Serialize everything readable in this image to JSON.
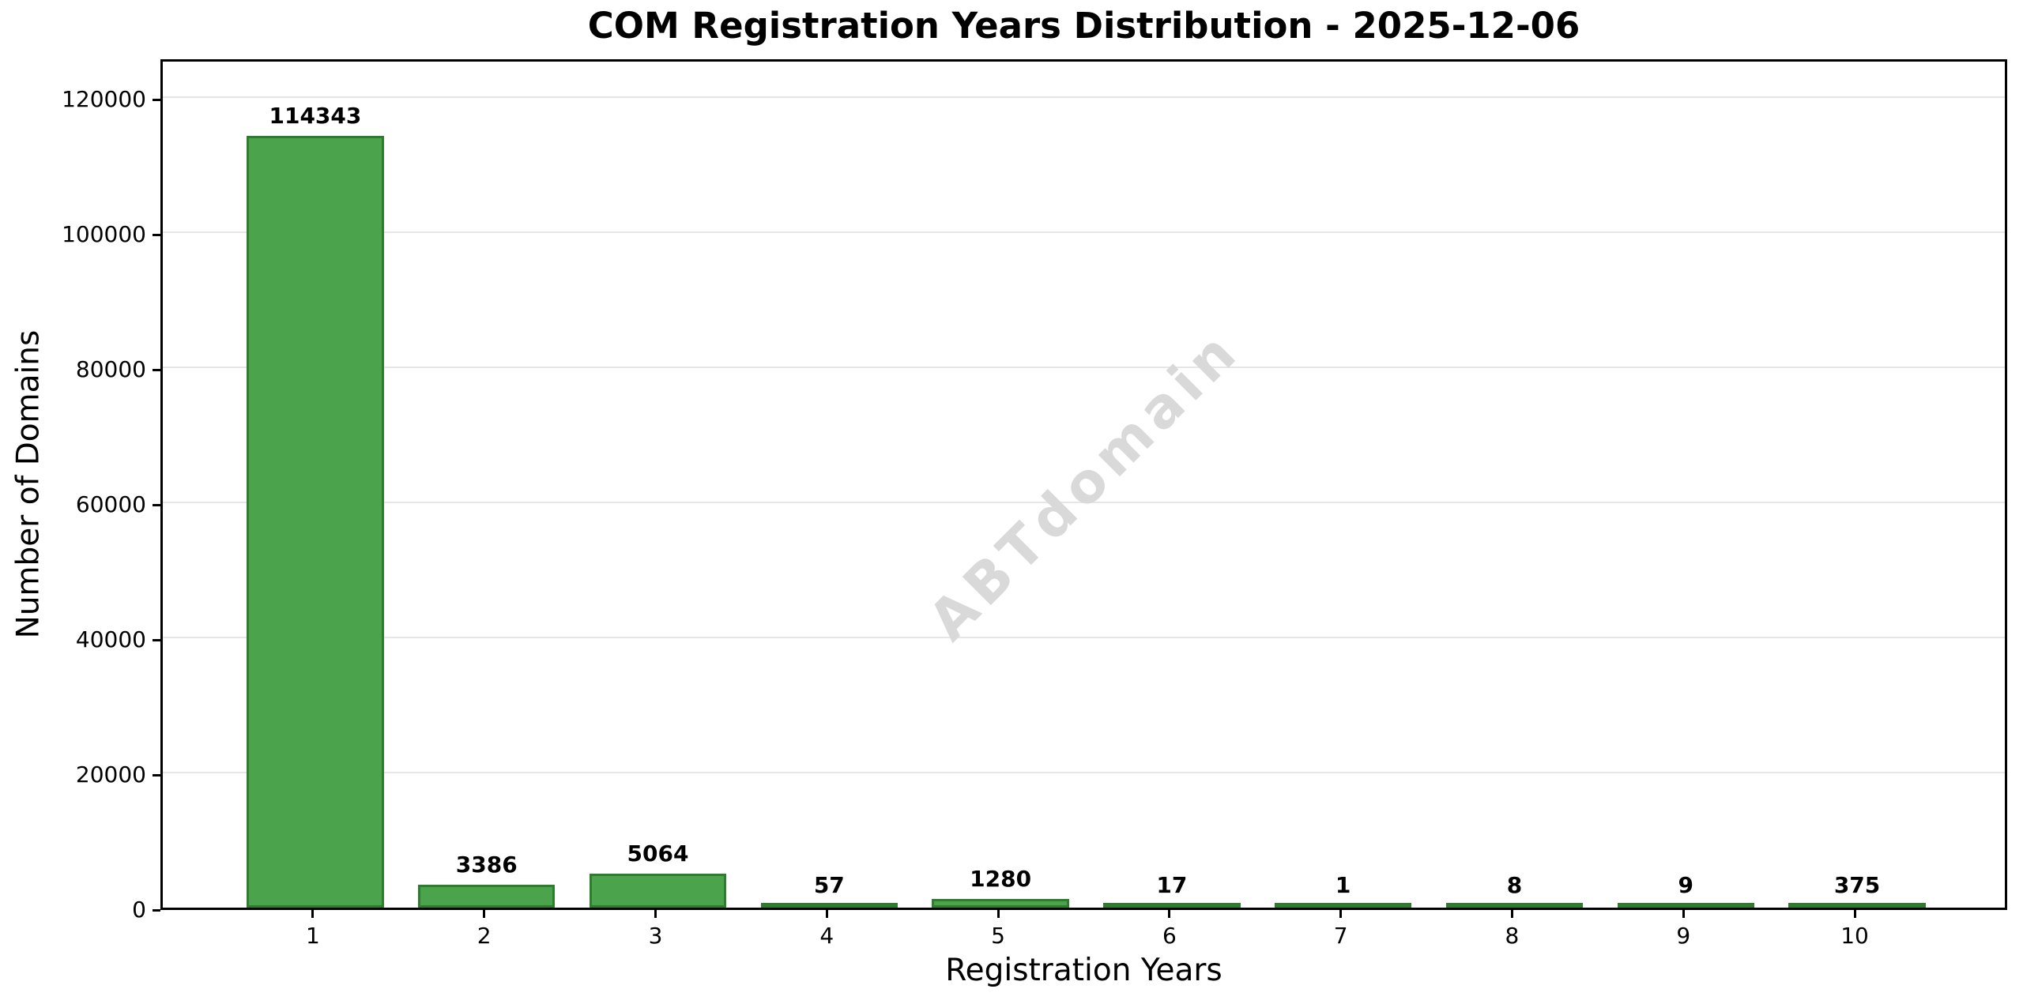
{
  "chart_data": {
    "type": "bar",
    "title": "COM Registration Years Distribution - 2025-12-06",
    "xlabel": "Registration Years",
    "ylabel": "Number of Domains",
    "categories": [
      "1",
      "2",
      "3",
      "4",
      "5",
      "6",
      "7",
      "8",
      "9",
      "10"
    ],
    "values": [
      114343,
      3386,
      5064,
      57,
      1280,
      17,
      1,
      8,
      9,
      375
    ],
    "bar_labels": [
      "114343",
      "3386",
      "5064",
      "57",
      "1280",
      "17",
      "1",
      "8",
      "9",
      "375"
    ],
    "yticks": [
      0,
      20000,
      40000,
      60000,
      80000,
      100000,
      120000
    ],
    "ytick_labels": [
      "0",
      "20000",
      "40000",
      "60000",
      "80000",
      "100000",
      "120000"
    ],
    "ylim": [
      0,
      126000
    ],
    "xlim": [
      0.11,
      10.89
    ],
    "bar_width_units": 0.8,
    "grid": "horizontal-only",
    "legend": null,
    "watermark": "ABTdomain",
    "colors": {
      "bar_fill": "#4ba34b",
      "bar_edge": "#2e7d2e",
      "grid": "#e6e6e6",
      "axis": "#000000",
      "text": "#000000",
      "watermark": "#d9d9d9",
      "background": "#ffffff"
    }
  }
}
